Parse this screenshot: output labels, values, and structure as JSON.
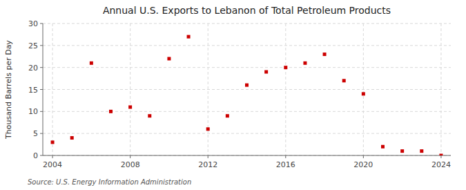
{
  "chart_data": {
    "type": "scatter",
    "title": "Annual U.S. Exports to Lebanon of Total Petroleum Products",
    "ylabel": "Thousand Barrels per Day",
    "annotations": [
      "Source: U.S. Energy Information Administration"
    ],
    "x": [
      2004,
      2005,
      2006,
      2007,
      2008,
      2009,
      2010,
      2011,
      2012,
      2013,
      2014,
      2015,
      2016,
      2017,
      2018,
      2019,
      2020,
      2021,
      2022,
      2023,
      2024
    ],
    "values": [
      3,
      4,
      21,
      10,
      11,
      9,
      22,
      27,
      6,
      9,
      16,
      19,
      20,
      21,
      23,
      17,
      14,
      2,
      1,
      1,
      0
    ],
    "color": "#cc0000",
    "marker": "square",
    "xlim": [
      2003.5,
      2024.5
    ],
    "ylim": [
      0,
      30
    ],
    "xticks": [
      2004,
      2008,
      2012,
      2016,
      2020,
      2024
    ],
    "yticks": [
      0,
      5,
      10,
      15,
      20,
      25,
      30
    ],
    "grid": true
  }
}
